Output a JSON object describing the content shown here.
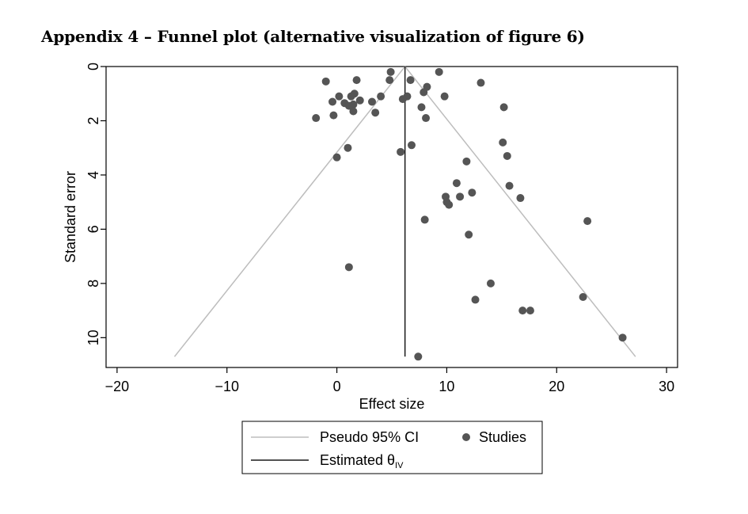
{
  "page": {
    "heading": "Appendix 4 – Funnel plot (alternative visualization of figure 6)"
  },
  "chart_data": {
    "type": "scatter",
    "title": "",
    "xlabel": "Effect size",
    "ylabel": "Standard error",
    "xlim": [
      -21,
      31
    ],
    "ylim": [
      0,
      11.1
    ],
    "y_inverted": true,
    "grid": false,
    "xticks": [
      -20,
      -10,
      0,
      10,
      20,
      30
    ],
    "yticks": [
      0,
      2,
      4,
      6,
      8,
      10
    ],
    "estimate": 6.2,
    "ci_line_color": "#bdbdbd",
    "estimate_line_color": "#1a1a1a",
    "point_color": "#555555",
    "legend": {
      "placement": "bottom",
      "items": [
        {
          "label": "Pseudo 95% CI",
          "kind": "line",
          "color": "#bdbdbd"
        },
        {
          "label": "Studies",
          "kind": "point",
          "color": "#555555"
        },
        {
          "label": "Estimated θ",
          "subscript": "IV",
          "kind": "line",
          "color": "#1a1a1a"
        }
      ]
    },
    "points": [
      {
        "x": 4.9,
        "y": 0.2
      },
      {
        "x": 9.3,
        "y": 0.2
      },
      {
        "x": -1.0,
        "y": 0.55
      },
      {
        "x": 1.8,
        "y": 0.5
      },
      {
        "x": 4.8,
        "y": 0.5
      },
      {
        "x": 6.7,
        "y": 0.5
      },
      {
        "x": 13.1,
        "y": 0.6
      },
      {
        "x": 8.2,
        "y": 0.75
      },
      {
        "x": 7.9,
        "y": 0.95
      },
      {
        "x": 1.6,
        "y": 1.0
      },
      {
        "x": 4.0,
        "y": 1.1
      },
      {
        "x": 0.2,
        "y": 1.1
      },
      {
        "x": 9.8,
        "y": 1.1
      },
      {
        "x": 6.4,
        "y": 1.1
      },
      {
        "x": 6.0,
        "y": 1.2
      },
      {
        "x": 1.3,
        "y": 1.1
      },
      {
        "x": 2.1,
        "y": 1.25
      },
      {
        "x": -0.4,
        "y": 1.3
      },
      {
        "x": 3.2,
        "y": 1.3
      },
      {
        "x": 0.7,
        "y": 1.35
      },
      {
        "x": 1.5,
        "y": 1.4
      },
      {
        "x": 1.1,
        "y": 1.45
      },
      {
        "x": 15.2,
        "y": 1.5
      },
      {
        "x": 7.7,
        "y": 1.5
      },
      {
        "x": 1.5,
        "y": 1.65
      },
      {
        "x": 3.5,
        "y": 1.7
      },
      {
        "x": -0.3,
        "y": 1.8
      },
      {
        "x": -1.9,
        "y": 1.9
      },
      {
        "x": 8.1,
        "y": 1.9
      },
      {
        "x": 15.1,
        "y": 2.8
      },
      {
        "x": 6.8,
        "y": 2.9
      },
      {
        "x": 1.0,
        "y": 3.0
      },
      {
        "x": 5.8,
        "y": 3.15
      },
      {
        "x": 15.5,
        "y": 3.3
      },
      {
        "x": 0.0,
        "y": 3.35
      },
      {
        "x": 11.8,
        "y": 3.5
      },
      {
        "x": 10.9,
        "y": 4.3
      },
      {
        "x": 15.7,
        "y": 4.4
      },
      {
        "x": 12.3,
        "y": 4.65
      },
      {
        "x": 9.9,
        "y": 4.8
      },
      {
        "x": 11.2,
        "y": 4.8
      },
      {
        "x": 16.7,
        "y": 4.85
      },
      {
        "x": 10.0,
        "y": 5.0
      },
      {
        "x": 10.2,
        "y": 5.1
      },
      {
        "x": 8.0,
        "y": 5.65
      },
      {
        "x": 22.8,
        "y": 5.7
      },
      {
        "x": 12.0,
        "y": 6.2
      },
      {
        "x": 1.1,
        "y": 7.4
      },
      {
        "x": 14.0,
        "y": 8.0
      },
      {
        "x": 22.4,
        "y": 8.5
      },
      {
        "x": 12.6,
        "y": 8.6
      },
      {
        "x": 16.9,
        "y": 9.0
      },
      {
        "x": 17.6,
        "y": 9.0
      },
      {
        "x": 26.0,
        "y": 10.0
      },
      {
        "x": 7.4,
        "y": 10.7
      }
    ]
  }
}
